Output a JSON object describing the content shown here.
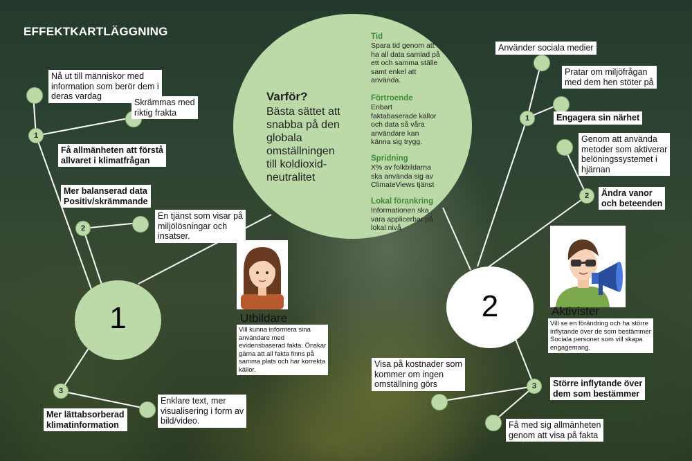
{
  "title": "EFFEKTKARTLÄGGNING",
  "why": {
    "heading": "Varför?",
    "text": "Bästa sättet att\nsnabba på  den\nglobala\nomställningen\ntill koldioxid-\nneutralitet"
  },
  "reasons": [
    {
      "heading": "Tid",
      "text": "Spara tid genom att\nha all data samlad på\nett och samma ställe\nsamt enkel att\nanvända."
    },
    {
      "heading": "Förtroende",
      "text": "Enbart\nfaktabaserade källor\noch data så våra\nanvändare kan\nkänna sig trygg."
    },
    {
      "heading": "Spridning",
      "text": "X% av folkbildarna\nska använda sig av\nClimateViews tjänst"
    },
    {
      "heading": "Lokal förankring",
      "text": "Informationen ska\nvara applicerbar på\nlokal nivå"
    }
  ],
  "group1": {
    "number": "1",
    "persona_name": "Utbildare",
    "persona_desc": "Vill kunna informera sina\nanvändare med\nevidensbaserad fakta. Önskar\ngärna att all fakta finns på\nsamma plats och har korrekta\nkällor.",
    "branches": [
      {
        "num": "1",
        "goal": "Få allmänheten att förstå\nallvaret i klimatfrågan",
        "items": [
          "Nå ut till människor med\ninformation som berör dem i\nderas vardag",
          "Skrämmas med\nriktig frakta"
        ]
      },
      {
        "num": "2",
        "goal": "Mer balanserad data\nPositiv/skrämmande",
        "items": [
          "En tjänst som visar på\nmiljölösningar och\ninsatser."
        ]
      },
      {
        "num": "3",
        "goal": "Mer lättabsorberad\nklimatinformation",
        "items": [
          "Enklare text, mer\nvisualisering i form av\nbild/video."
        ]
      }
    ]
  },
  "group2": {
    "number": "2",
    "persona_name": "Aktivister",
    "persona_desc": "Vill se en förändring och ha större\ninflytande över de som bestämmer\nSociala personer som vill skapa\nengagemang.",
    "branches": [
      {
        "num": "1",
        "goal": "Engagera sin närhet",
        "items": [
          "Använder sociala medier",
          "Pratar om miljöfrågan\nmed dem hen stöter på"
        ]
      },
      {
        "num": "2",
        "goal": "Ändra vanor\noch beteenden",
        "items": [
          "Genom att använda\nmetoder som aktiverar\nbelöningssystemet i\nhjärnan"
        ]
      },
      {
        "num": "3",
        "goal": "Större inflytande över\ndem som bestämmer",
        "items": [
          "Visa på kostnader som\nkommer om ingen\nomställning görs",
          "Få med sig allmänheten\ngenom att visa på fakta"
        ]
      }
    ]
  },
  "colors": {
    "circle_green": "#bcd9a8",
    "heading_green": "#3f8a38",
    "line": "#ffffff"
  }
}
